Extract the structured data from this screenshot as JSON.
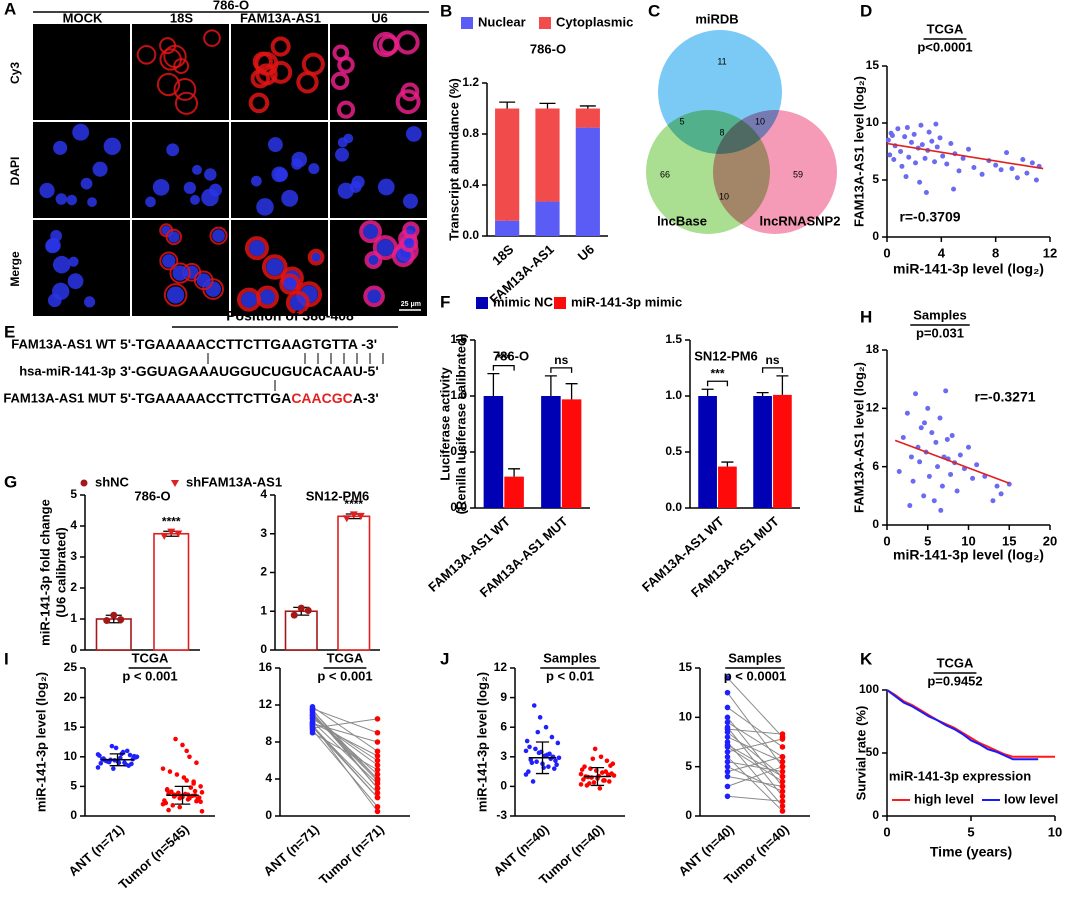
{
  "figure": {
    "A": {
      "label": "A",
      "title": "786-O",
      "columns": [
        "MOCK",
        "18S",
        "FAM13A-AS1",
        "U6"
      ],
      "rows": [
        "Cy3",
        "DAPI",
        "Merge"
      ],
      "scale": "25 μm"
    },
    "C": {
      "label": "C",
      "sets": [
        {
          "name": "miRDB",
          "color": "#4db8f2"
        },
        {
          "name": "lncBase",
          "color": "#8ed36b"
        },
        {
          "name": "lncRNASNP2",
          "color": "#f2789f"
        }
      ],
      "regions": [
        11,
        5,
        8,
        10,
        66,
        10,
        59
      ]
    },
    "E": {
      "label": "E",
      "header": "Position of 386-408",
      "highlight_color": "#e32020",
      "lines": [
        {
          "name": "FAM13A-AS1 WT",
          "sequence": [
            "5'-TGAAAAACCTTCTTGAAGTGTTA -3'"
          ]
        },
        {
          "name": "hsa-miR-141-3p",
          "sequence": [
            "3'-GGUAGAAAUGGUCUGUCACAAU-5'"
          ]
        },
        {
          "name": "FAM13A-AS1 MUT",
          "sequence": [
            "5'-TGAAAAACCTTCTTGA",
            "CAACGC",
            "A-3'"
          ]
        }
      ]
    }
  },
  "chart_data": [
    {
      "type": "bar",
      "label": "B",
      "stacked": true,
      "title": "786-O",
      "ylabel": "Transcript abumdance (%)",
      "categories": [
        "18S",
        "FAM13A-AS1",
        "U6"
      ],
      "series": [
        {
          "name": "Nuclear",
          "color": "#5b5bf5",
          "values": [
            0.12,
            0.27,
            0.85
          ],
          "errors": [
            0.01,
            0.05,
            0.02
          ]
        },
        {
          "name": "Cytoplasmic",
          "color": "#f24b4b",
          "values": [
            0.88,
            0.73,
            0.15
          ],
          "errors": [
            0.05,
            0.04,
            0.02
          ]
        }
      ],
      "ylim": [
        0,
        1.2
      ],
      "yticks": [
        {
          "value": 0,
          "label": "0.0"
        },
        0.4,
        0.8,
        1.2
      ]
    },
    {
      "type": "scatter",
      "label": "D",
      "title": "TCGA",
      "subtitle": "p<0.0001",
      "annotation": "r=-0.3709",
      "xlabel": "miR-141-3p level (log₂)",
      "ylabel": "FAM13A-AS1 level (log₂)",
      "color": "#6b6bf2",
      "fit": {
        "color": "#e02020",
        "x": [
          0,
          11.5
        ],
        "y": [
          8.2,
          6.0
        ]
      },
      "x": [
        0.1,
        0.2,
        0.3,
        0.5,
        0.6,
        0.8,
        1.0,
        1.1,
        1.3,
        1.5,
        1.6,
        1.8,
        2.0,
        2.1,
        2.3,
        2.5,
        2.6,
        2.8,
        3.0,
        3.1,
        3.3,
        3.5,
        3.7,
        3.9,
        4.1,
        4.4,
        4.7,
        5.0,
        5.3,
        5.6,
        6.0,
        6.4,
        7.0,
        7.5,
        8.0,
        8.4,
        8.8,
        9.2,
        9.6,
        10.0,
        10.3,
        10.7,
        11.0,
        11.2,
        2.4,
        3.6,
        1.4,
        0.4,
        2.9,
        4.9
      ],
      "y": [
        8.5,
        7.2,
        9.1,
        6.8,
        8.0,
        9.5,
        7.5,
        6.2,
        8.8,
        9.6,
        7.0,
        8.3,
        9.0,
        6.5,
        7.8,
        9.8,
        8.1,
        6.9,
        7.6,
        9.2,
        8.4,
        6.6,
        7.9,
        8.7,
        7.1,
        6.4,
        8.2,
        7.3,
        5.8,
        6.9,
        7.7,
        6.1,
        5.5,
        6.7,
        6.3,
        5.9,
        7.4,
        6.0,
        5.2,
        6.8,
        5.6,
        6.5,
        5.0,
        6.2,
        4.8,
        9.9,
        5.3,
        8.9,
        3.9,
        4.2
      ],
      "xlim": [
        0,
        12
      ],
      "xticks": [
        0,
        4,
        8,
        12
      ],
      "ylim": [
        0,
        15
      ],
      "yticks": [
        0,
        5,
        10,
        15
      ]
    },
    {
      "type": "bar",
      "label": "F",
      "ylabel": [
        "Luciferase activity",
        "(Renilla luciferase calibrated)"
      ],
      "categories": [
        "FAM13A-AS1 WT",
        "FAM13A-AS1 MUT"
      ],
      "series": [
        {
          "name": "mimic NC",
          "color": "#0000b4"
        },
        {
          "name": "miR-141-3p mimic",
          "color": "#ff0a0a"
        }
      ],
      "subplots": [
        {
          "title": "786-O",
          "values": [
            [
              1.0,
              1.0
            ],
            [
              0.28,
              0.97
            ]
          ],
          "errors": [
            [
              0.2,
              0.18
            ],
            [
              0.07,
              0.14
            ]
          ],
          "annotations": [
            "***",
            "ns"
          ],
          "ylim": [
            0,
            1.5
          ],
          "yticks": [
            {
              "value": 0,
              "label": "0.0"
            },
            0.5,
            {
              "value": 1,
              "label": "1.0"
            },
            1.5
          ]
        },
        {
          "title": "SN12-PM6",
          "values": [
            [
              1.0,
              1.0
            ],
            [
              0.37,
              1.01
            ]
          ],
          "errors": [
            [
              0.06,
              0.03
            ],
            [
              0.04,
              0.17
            ]
          ],
          "annotations": [
            "***",
            "ns"
          ],
          "ylim": [
            0,
            1.5
          ],
          "yticks": [
            {
              "value": 0,
              "label": "0.0"
            },
            0.5,
            {
              "value": 1,
              "label": "1.0"
            },
            1.5
          ]
        }
      ]
    },
    {
      "type": "bar",
      "label": "G",
      "outline": true,
      "ylabel": [
        "miR-141-3p fold change",
        "(U6 calibrated)"
      ],
      "series": [
        {
          "name": "shNC",
          "color": "#a31818",
          "marker": "circle"
        },
        {
          "name": "shFAM13A-AS1",
          "color": "#e02020",
          "marker": "triangle"
        }
      ],
      "subplots": [
        {
          "title": "786-O",
          "values": [
            1.0,
            3.75
          ],
          "errors": [
            0.12,
            0.08
          ],
          "points": [
            [
              0.95,
              1.12,
              0.98
            ],
            [
              3.68,
              3.82,
              3.76
            ]
          ],
          "annotation": "****",
          "ylim": [
            0,
            5
          ],
          "yticks": [
            0,
            1,
            2,
            3,
            4,
            5
          ]
        },
        {
          "title": "SN12-PM6",
          "values": [
            1.0,
            3.45
          ],
          "errors": [
            0.1,
            0.06
          ],
          "points": [
            [
              0.9,
              1.08,
              1.02
            ],
            [
              3.4,
              3.5,
              3.46
            ]
          ],
          "annotation": "****",
          "ylim": [
            0,
            4
          ],
          "yticks": [
            0,
            1,
            2,
            3,
            4
          ]
        }
      ]
    },
    {
      "type": "scatter",
      "label": "H",
      "title": "Samples",
      "subtitle": "p=0.031",
      "annotation": "r=-0.3271",
      "xlabel": "miR-141-3p level (log₂)",
      "ylabel": "FAM13A-AS1  level (log₂)",
      "color": "#6b6bf2",
      "fit": {
        "color": "#e02020",
        "x": [
          1,
          15
        ],
        "y": [
          8.7,
          4.3
        ]
      },
      "x": [
        1.5,
        2.0,
        2.5,
        3.0,
        3.2,
        3.5,
        3.8,
        4.0,
        4.2,
        4.5,
        4.8,
        5.0,
        5.2,
        5.5,
        5.8,
        6.0,
        6.2,
        6.5,
        6.8,
        7.0,
        7.2,
        7.5,
        7.8,
        8.0,
        8.3,
        8.6,
        9.0,
        9.5,
        10.0,
        10.5,
        11.0,
        12.0,
        13.0,
        13.5,
        14.0,
        15.0,
        2.8,
        4.6,
        6.6,
        7.4
      ],
      "y": [
        5.5,
        9.0,
        11.5,
        7.0,
        4.5,
        13.5,
        8.0,
        6.5,
        10.0,
        3.0,
        7.5,
        12.0,
        5.0,
        9.5,
        2.5,
        8.5,
        6.0,
        11.0,
        4.0,
        7.0,
        13.8,
        6.8,
        5.2,
        9.2,
        6.4,
        3.5,
        7.2,
        5.8,
        8.0,
        4.8,
        6.2,
        5.0,
        2.5,
        4.0,
        3.2,
        4.2,
        2.0,
        10.5,
        1.5,
        8.8
      ],
      "xlim": [
        0,
        20
      ],
      "xticks": [
        0,
        5,
        10,
        15,
        20
      ],
      "ylim": [
        0,
        18
      ],
      "yticks": [
        0,
        6,
        12,
        18
      ]
    },
    {
      "type": "dot",
      "label": "I",
      "ylabel": "miR-141-3p level (log₂)",
      "colors": [
        "#1f1fff",
        "#ff0000"
      ],
      "subplots": [
        {
          "kind": "strip",
          "title": "TCGA",
          "subtitle": "p < 0.001",
          "categories": [
            "ANT (n=71)",
            "Tumor (n=545)"
          ],
          "points": [
            [
              8.2,
              8.8,
              9.0,
              9.3,
              9.5,
              9.7,
              10.0,
              10.3,
              10.8,
              11.5,
              9.1,
              9.6,
              9.9,
              8.5,
              10.5,
              9.4,
              9.2,
              8.9,
              10.1,
              11.0,
              9.8,
              8.0,
              9.3,
              10.2,
              9.6,
              8.7,
              9.0,
              11.8,
              9.4,
              10.4
            ],
            [
              2.0,
              2.5,
              3.0,
              3.2,
              3.5,
              3.8,
              4.0,
              4.2,
              2.8,
              3.3,
              3.6,
              4.5,
              5.0,
              5.5,
              6.0,
              1.5,
              1.8,
              2.2,
              3.1,
              3.4,
              3.7,
              3.9,
              4.1,
              2.6,
              2.9,
              4.8,
              6.5,
              7.0,
              7.5,
              8.0,
              9.0,
              10.0,
              12.0,
              13.0,
              1.0,
              0.8,
              3.5,
              3.6,
              3.4,
              3.3,
              4.4,
              2.4,
              5.8,
              11.0,
              3.0
            ]
          ],
          "means": [
            9.5,
            3.5
          ],
          "sds": [
            1.0,
            1.5
          ],
          "ylim": [
            0,
            25
          ],
          "yticks": [
            0,
            5,
            10,
            15,
            20,
            25
          ]
        },
        {
          "kind": "paired",
          "title": "TCGA",
          "subtitle": "p < 0.001",
          "categories": [
            "ANT (n=71)",
            "Tumor (n=71)"
          ],
          "values": [
            [
              9.5,
              10,
              10.5,
              11,
              11.5,
              9,
              9.8,
              10.2,
              11.8,
              10.8,
              9.3,
              11.2,
              10.6,
              9.7,
              11.4,
              10.1,
              9.9,
              10.9,
              11.6,
              9.6
            ],
            [
              10.5,
              8,
              6,
              4,
              3,
              5,
              2,
              3.5,
              7,
              4.5,
              1,
              3,
              5.5,
              2.5,
              4,
              6.5,
              0.5,
              3.8,
              9,
              2
            ]
          ],
          "ylim": [
            0,
            16
          ],
          "yticks": [
            0,
            4,
            8,
            12,
            16
          ]
        }
      ]
    },
    {
      "type": "dot",
      "label": "J",
      "ylabel": "miR-141-3p level (log₂)",
      "colors": [
        "#1f1fff",
        "#ff0000"
      ],
      "subplots": [
        {
          "kind": "strip",
          "title": "Samples",
          "subtitle": "p < 0.01",
          "categories": [
            "ANT (n=40)",
            "Tumor (n=40)"
          ],
          "points": [
            [
              1.2,
              1.8,
              2.0,
              2.3,
              2.5,
              2.7,
              2.9,
              3.0,
              3.2,
              3.5,
              3.8,
              4.0,
              4.4,
              5.0,
              6.0,
              7.0,
              8.2,
              1.5,
              2.2,
              2.8,
              3.1,
              3.4,
              0.5,
              4.6,
              2.6,
              3.3,
              1.9,
              5.5,
              2.4,
              3.6
            ],
            [
              0.2,
              0.5,
              0.6,
              0.8,
              0.9,
              1.0,
              1.1,
              1.2,
              1.4,
              1.6,
              1.8,
              2.0,
              2.3,
              2.6,
              3.0,
              3.8,
              0.3,
              0.7,
              1.3,
              1.5,
              -0.2,
              0.4,
              0.95,
              1.7,
              2.1,
              0.6,
              1.05,
              2.8,
              0.1,
              1.25
            ]
          ],
          "means": [
            2.9,
            1.0
          ],
          "sds": [
            1.6,
            0.9
          ],
          "ylim": [
            -3,
            12
          ],
          "yticks": [
            -3,
            0,
            3,
            6,
            9,
            12
          ]
        },
        {
          "kind": "paired",
          "title": "Samples",
          "subtitle": "p < 0.0001",
          "categories": [
            "ANT (n=40)",
            "Tumor (n=40)"
          ],
          "values": [
            [
              14,
              12.5,
              11,
              10,
              9.5,
              9,
              8.5,
              8,
              7.5,
              7,
              6.5,
              6,
              5.5,
              5,
              4.5,
              4,
              3,
              2,
              8.8,
              7.2
            ],
            [
              8,
              5,
              7,
              3,
              6,
              2,
              4,
              5.5,
              1,
              3.5,
              7.8,
              0.5,
              4.5,
              2.5,
              6,
              3,
              5,
              1.5,
              8.3,
              4
            ]
          ],
          "ylim": [
            0,
            15
          ],
          "yticks": [
            0,
            5,
            10,
            15
          ]
        }
      ]
    },
    {
      "type": "line",
      "label": "K",
      "title": "TCGA",
      "subtitle": "p=0.9452",
      "legend_title": "miR-141-3p expression",
      "xlabel": "Time (years)",
      "ylabel": "Survial rate (%)",
      "x": [
        0,
        0.5,
        1,
        1.5,
        2,
        2.5,
        3,
        3.5,
        4,
        4.5,
        5,
        5.5,
        6,
        6.5,
        7,
        7.5,
        8,
        9,
        10
      ],
      "series": [
        {
          "name": "high level",
          "color": "#ff1a1a",
          "values": [
            100,
            96,
            91,
            88,
            84,
            80,
            76,
            73,
            70,
            66,
            62,
            58,
            55,
            52,
            49,
            47,
            47,
            47,
            47
          ]
        },
        {
          "name": "low level",
          "color": "#1a1aff",
          "values": [
            100,
            95,
            90,
            87,
            83,
            79,
            76,
            72,
            69,
            65,
            60,
            57,
            53,
            51,
            48,
            45,
            45,
            45,
            null
          ]
        }
      ],
      "xlim": [
        0,
        10
      ],
      "xticks": [
        0,
        5,
        10
      ],
      "ylim": [
        0,
        100
      ],
      "yticks": [
        0,
        50,
        100
      ]
    }
  ]
}
